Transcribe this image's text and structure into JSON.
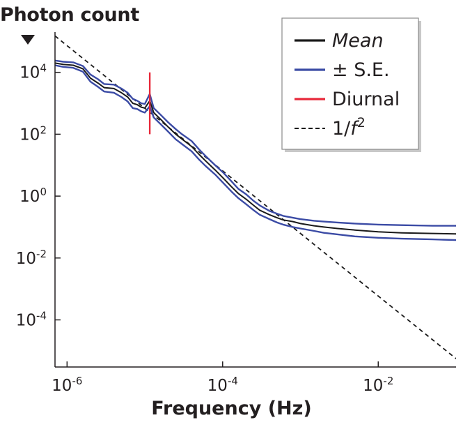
{
  "chart_data": {
    "type": "line",
    "ylabel": "Photon count",
    "xlabel": "Frequency (Hz)",
    "xscale": "log",
    "yscale": "log",
    "xlim": [
      7e-07,
      0.1
    ],
    "ylim": [
      3e-06,
      200000
    ],
    "x_ticks": [
      {
        "base": "10",
        "exp": "-6",
        "value": 1e-06
      },
      {
        "base": "10",
        "exp": "-4",
        "value": 0.0001
      },
      {
        "base": "10",
        "exp": "-2",
        "value": 0.01
      }
    ],
    "y_ticks": [
      {
        "base": "10",
        "exp": "4",
        "value": 10000.0
      },
      {
        "base": "10",
        "exp": "2",
        "value": 100.0
      },
      {
        "base": "10",
        "exp": "0",
        "value": 1.0
      },
      {
        "base": "10",
        "exp": "-2",
        "value": 0.01
      },
      {
        "base": "10",
        "exp": "-4",
        "value": 0.0001
      }
    ],
    "legend_position": "top-right",
    "legend": [
      {
        "label": "Mean",
        "italic": true,
        "color": "#1a1a1a",
        "style": "solid"
      },
      {
        "label": "± S.E.",
        "color": "#3b4ba5",
        "style": "solid"
      },
      {
        "label": "Diurnal",
        "color": "#e8293a",
        "style": "solid"
      },
      {
        "label": "1/f",
        "sup": "2",
        "color": "#1a1a1a",
        "style": "dashed"
      }
    ],
    "series": [
      {
        "name": "Mean",
        "color": "#1a1a1a",
        "x": [
          7e-07,
          9e-07,
          1.2e-06,
          1.6e-06,
          2e-06,
          2.5e-06,
          3e-06,
          4e-06,
          5e-06,
          6e-06,
          7e-06,
          8e-06,
          9e-06,
          1e-05,
          1.157e-05,
          1.3e-05,
          1.6e-05,
          2e-05,
          2.5e-05,
          3e-05,
          4e-05,
          5e-05,
          6e-05,
          8e-05,
          0.0001,
          0.00013,
          0.00016,
          0.0002,
          0.00025,
          0.0003,
          0.0004,
          0.0005,
          0.0006,
          0.0008,
          0.001,
          0.0015,
          0.002,
          0.003,
          0.005,
          0.01,
          0.02,
          0.05,
          0.1
        ],
        "y": [
          20000,
          18000,
          17000,
          13000,
          6500,
          4500,
          3200,
          3000,
          2200,
          1600,
          1000,
          900,
          750,
          700,
          1200,
          500,
          300,
          170,
          100,
          70,
          40,
          22,
          14,
          7,
          4,
          2,
          1.2,
          0.8,
          0.5,
          0.35,
          0.25,
          0.2,
          0.17,
          0.15,
          0.13,
          0.11,
          0.1,
          0.09,
          0.08,
          0.07,
          0.065,
          0.062,
          0.06
        ]
      },
      {
        "name": "± S.E.",
        "color": "#3b4ba5",
        "x": [
          7e-07,
          9e-07,
          1.2e-06,
          1.6e-06,
          2e-06,
          2.5e-06,
          3e-06,
          4e-06,
          5e-06,
          6e-06,
          7e-06,
          8e-06,
          9e-06,
          1e-05,
          1.157e-05,
          1.3e-05,
          1.6e-05,
          2e-05,
          2.5e-05,
          3e-05,
          4e-05,
          5e-05,
          6e-05,
          8e-05,
          0.0001,
          0.00013,
          0.00016,
          0.0002,
          0.00025,
          0.0003,
          0.0004,
          0.0005,
          0.0006,
          0.0008,
          0.001,
          0.0015,
          0.002,
          0.003,
          0.005,
          0.01,
          0.02,
          0.05,
          0.1
        ],
        "y": [
          24000,
          22000,
          21000,
          16000,
          8500,
          6000,
          4200,
          4000,
          3000,
          2200,
          1400,
          1200,
          1000,
          950,
          2000,
          700,
          420,
          240,
          145,
          100,
          60,
          32,
          20,
          10,
          6,
          3,
          1.7,
          1.15,
          0.7,
          0.5,
          0.33,
          0.27,
          0.23,
          0.2,
          0.18,
          0.16,
          0.15,
          0.14,
          0.13,
          0.12,
          0.115,
          0.11,
          0.11
        ]
      },
      {
        "name": "± S.E.",
        "color": "#3b4ba5",
        "x": [
          7e-07,
          9e-07,
          1.2e-06,
          1.6e-06,
          2e-06,
          2.5e-06,
          3e-06,
          4e-06,
          5e-06,
          6e-06,
          7e-06,
          8e-06,
          9e-06,
          1e-05,
          1.157e-05,
          1.3e-05,
          1.6e-05,
          2e-05,
          2.5e-05,
          3e-05,
          4e-05,
          5e-05,
          6e-05,
          8e-05,
          0.0001,
          0.00013,
          0.00016,
          0.0002,
          0.00025,
          0.0003,
          0.0004,
          0.0005,
          0.0006,
          0.0008,
          0.001,
          0.0015,
          0.002,
          0.003,
          0.005,
          0.01,
          0.02,
          0.05,
          0.1
        ],
        "y": [
          17000,
          15000,
          14000,
          10500,
          5000,
          3400,
          2400,
          2200,
          1600,
          1150,
          700,
          650,
          550,
          500,
          800,
          350,
          210,
          120,
          68,
          48,
          28,
          15,
          9.5,
          5,
          2.8,
          1.4,
          0.85,
          0.55,
          0.35,
          0.25,
          0.18,
          0.14,
          0.12,
          0.1,
          0.09,
          0.075,
          0.065,
          0.058,
          0.05,
          0.045,
          0.042,
          0.04,
          0.038
        ]
      },
      {
        "name": "Diurnal",
        "color": "#e8293a",
        "x": [
          1.157e-05,
          1.157e-05
        ],
        "y": [
          100,
          10000
        ]
      },
      {
        "name": "1/f²",
        "color": "#1a1a1a",
        "dashed": true,
        "x": [
          7e-07,
          0.1
        ],
        "y": [
          150000,
          5.6e-06
        ]
      }
    ]
  }
}
